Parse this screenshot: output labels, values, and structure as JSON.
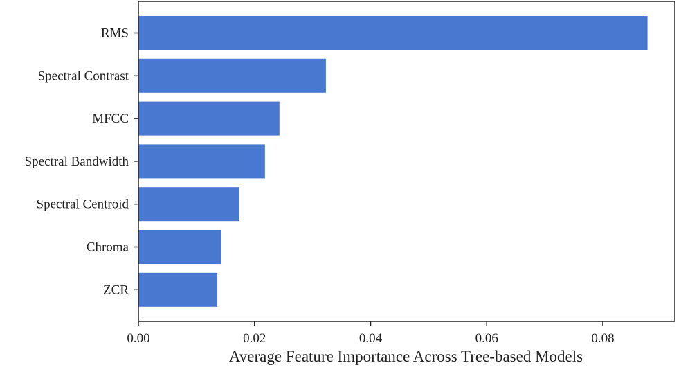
{
  "chart_data": {
    "type": "bar",
    "orientation": "horizontal",
    "categories": [
      "RMS",
      "Spectral Contrast",
      "MFCC",
      "Spectral Bandwidth",
      "Spectral Centroid",
      "Chroma",
      "ZCR"
    ],
    "values": [
      0.0877,
      0.0323,
      0.0243,
      0.0218,
      0.0174,
      0.0143,
      0.0136
    ],
    "xlabel": "Average Feature Importance Across Tree-based Models",
    "ylabel": "",
    "title": "",
    "xlim": [
      0.0,
      0.0924
    ],
    "xticks": [
      0.0,
      0.02,
      0.04,
      0.06,
      0.08
    ],
    "xtick_labels": [
      "0.00",
      "0.02",
      "0.04",
      "0.06",
      "0.08"
    ],
    "grid": false,
    "bar_color": "#4878d0"
  }
}
